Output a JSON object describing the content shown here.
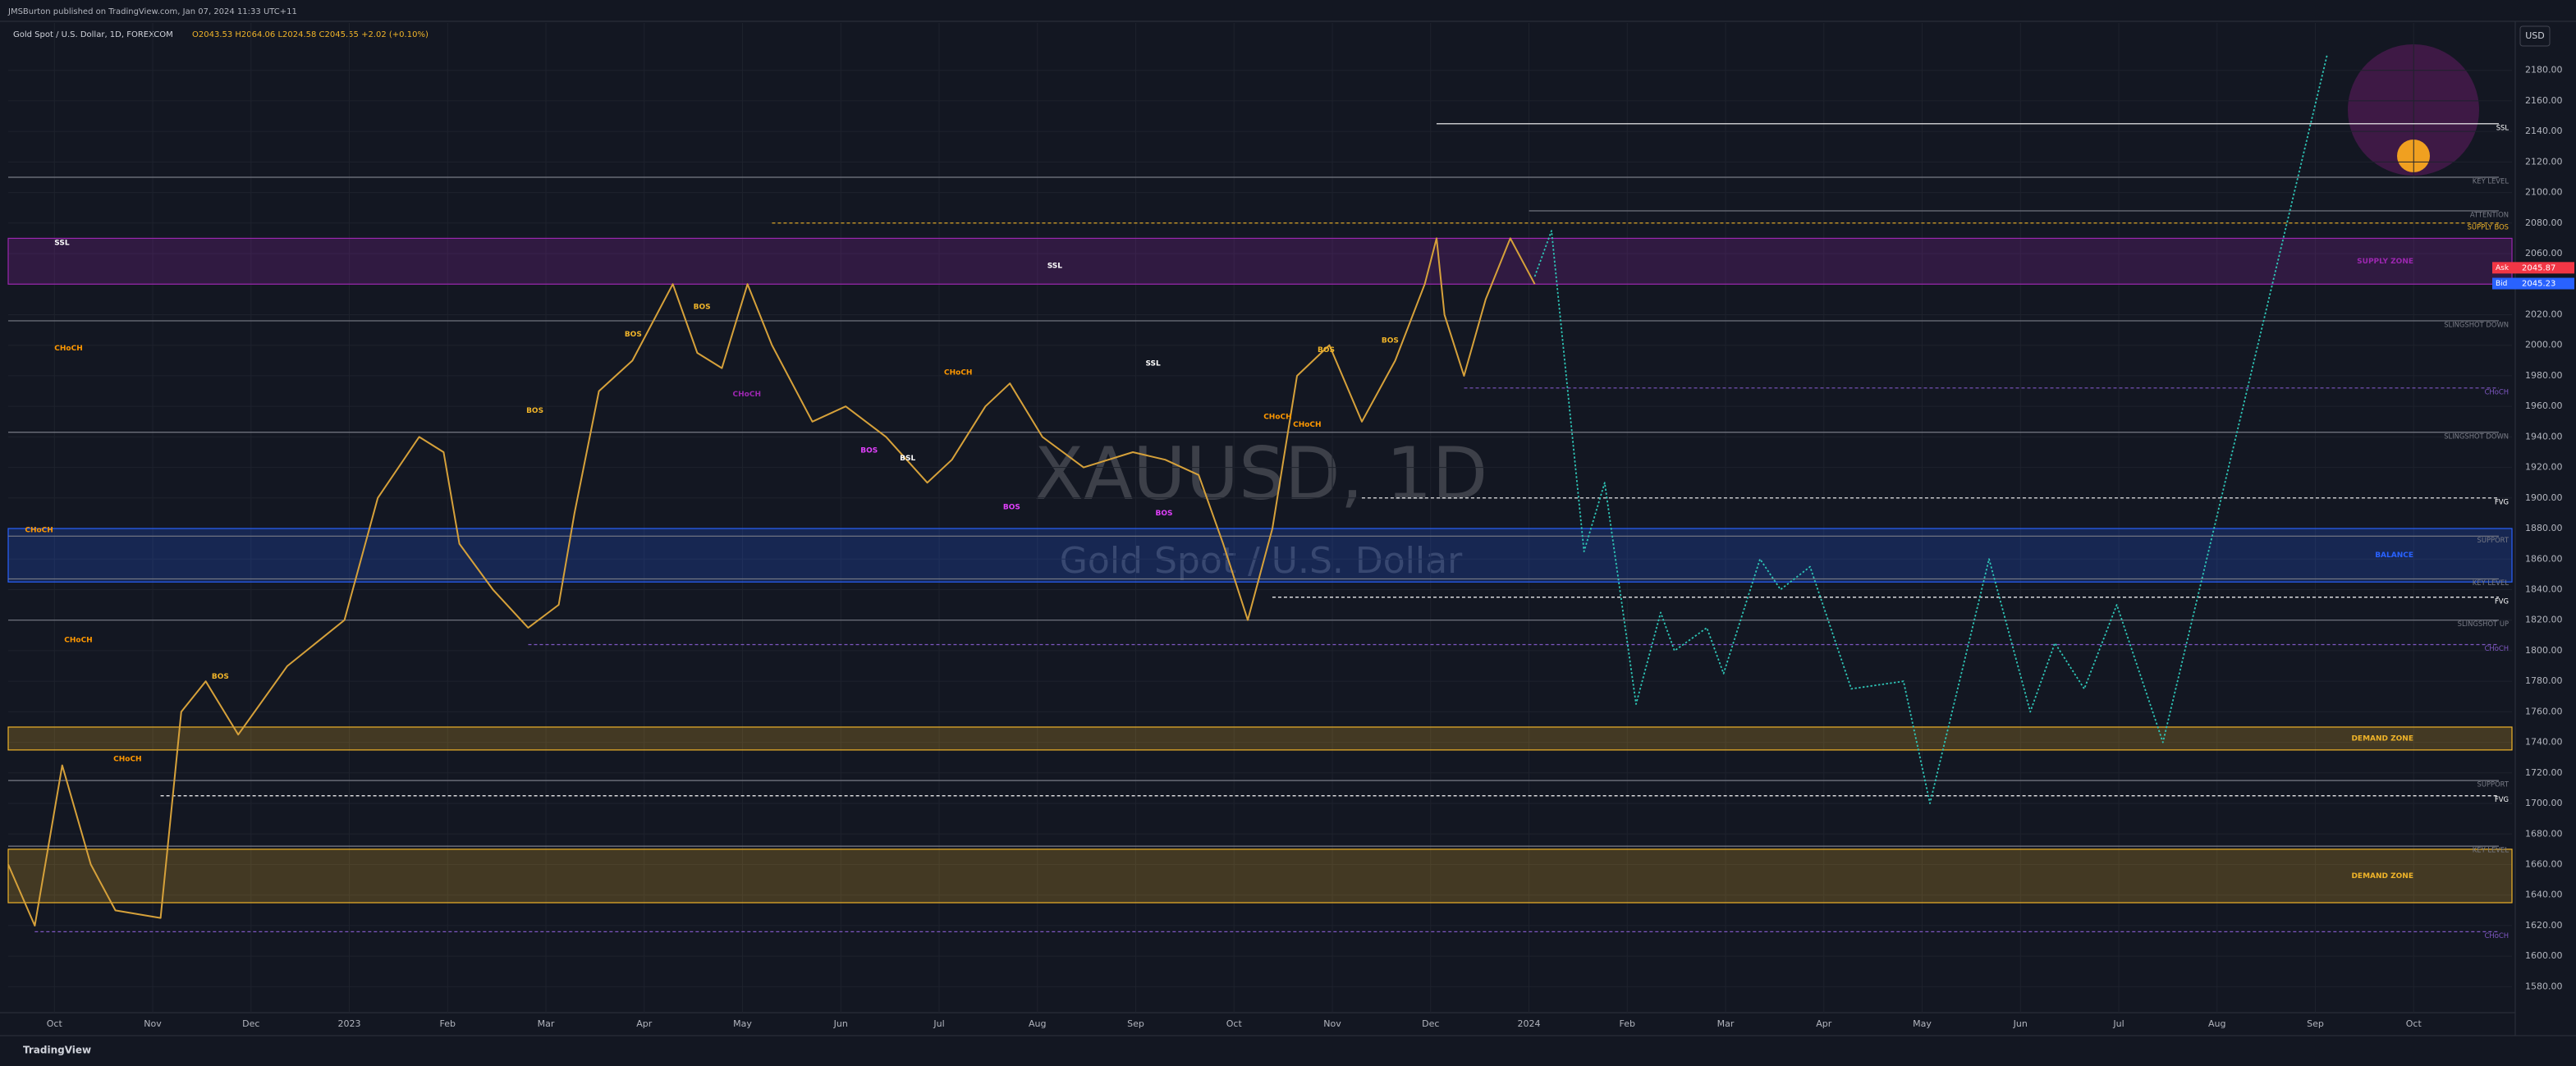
{
  "header": {
    "published": "JMSBurton published on TradingView.com, Jan 07, 2024 11:33 UTC+11",
    "symbol": "Gold Spot / U.S. Dollar, 1D, FOREXCOM",
    "ohlc": "O2043.53 H2064.06 L2024.58 C2045.55 +2.02 (+0.10%)",
    "currency": "USD",
    "footer": "TradingView"
  },
  "chart_data": {
    "type": "line",
    "watermark": "XAUUSD, 1D",
    "watermark_sub": "Gold Spot / U.S. Dollar",
    "xlim": [
      -0.47,
      25
    ],
    "xticks": [
      {
        "value": 0,
        "label": "Oct"
      },
      {
        "value": 1,
        "label": "Nov"
      },
      {
        "value": 2,
        "label": "Dec"
      },
      {
        "value": 3,
        "label": "2023"
      },
      {
        "value": 4,
        "label": "Feb"
      },
      {
        "value": 5,
        "label": "Mar"
      },
      {
        "value": 6,
        "label": "Apr"
      },
      {
        "value": 7,
        "label": "May"
      },
      {
        "value": 8,
        "label": "Jun"
      },
      {
        "value": 9,
        "label": "Jul"
      },
      {
        "value": 10,
        "label": "Aug"
      },
      {
        "value": 11,
        "label": "Sep"
      },
      {
        "value": 12,
        "label": "Oct"
      },
      {
        "value": 13,
        "label": "Nov"
      },
      {
        "value": 14,
        "label": "Dec"
      },
      {
        "value": 15,
        "label": "2024"
      },
      {
        "value": 16,
        "label": "Feb"
      },
      {
        "value": 17,
        "label": "Mar"
      },
      {
        "value": 18,
        "label": "Apr"
      },
      {
        "value": 19,
        "label": "May"
      },
      {
        "value": 20,
        "label": "Jun"
      },
      {
        "value": 21,
        "label": "Jul"
      },
      {
        "value": 22,
        "label": "Aug"
      },
      {
        "value": 23,
        "label": "Sep"
      },
      {
        "value": 24,
        "label": "Oct"
      }
    ],
    "ylim": [
      1563,
      2211
    ],
    "yticks": [
      {
        "value": 1580,
        "label": "1580.00"
      },
      {
        "value": 1600,
        "label": "1600.00"
      },
      {
        "value": 1620,
        "label": "1620.00"
      },
      {
        "value": 1640,
        "label": "1640.00"
      },
      {
        "value": 1660,
        "label": "1660.00"
      },
      {
        "value": 1680,
        "label": "1680.00"
      },
      {
        "value": 1700,
        "label": "1700.00"
      },
      {
        "value": 1720,
        "label": "1720.00"
      },
      {
        "value": 1740,
        "label": "1740.00"
      },
      {
        "value": 1760,
        "label": "1760.00"
      },
      {
        "value": 1780,
        "label": "1780.00"
      },
      {
        "value": 1800,
        "label": "1800.00"
      },
      {
        "value": 1820,
        "label": "1820.00"
      },
      {
        "value": 1840,
        "label": "1840.00"
      },
      {
        "value": 1860,
        "label": "1860.00"
      },
      {
        "value": 1880,
        "label": "1880.00"
      },
      {
        "value": 1900,
        "label": "1900.00"
      },
      {
        "value": 1920,
        "label": "1920.00"
      },
      {
        "value": 1940,
        "label": "1940.00"
      },
      {
        "value": 1960,
        "label": "1960.00"
      },
      {
        "value": 1980,
        "label": "1980.00"
      },
      {
        "value": 2000,
        "label": "2000.00"
      },
      {
        "value": 2020,
        "label": "2020.00"
      },
      {
        "value": 2040,
        "label": "2040.00"
      },
      {
        "value": 2060,
        "label": "2060.00"
      },
      {
        "value": 2080,
        "label": "2080.00"
      },
      {
        "value": 2100,
        "label": "2100.00"
      },
      {
        "value": 2120,
        "label": "2120.00"
      },
      {
        "value": 2140,
        "label": "2140.00"
      },
      {
        "value": 2160,
        "label": "2160.00"
      },
      {
        "value": 2180,
        "label": "2180.00"
      }
    ],
    "series": [
      {
        "color": "#d6a13a",
        "dash": false,
        "x": [
          -0.47,
          -0.2,
          0.08,
          0.37,
          0.62,
          1.08,
          1.29,
          1.54,
          1.87,
          2.37,
          2.95,
          3.29,
          3.71,
          3.96,
          4.12,
          4.46,
          4.82,
          5.13,
          5.29,
          5.54,
          5.88,
          6.29,
          6.54,
          6.79,
          7.05,
          7.3,
          7.71,
          8.05,
          8.46,
          8.88,
          9.13,
          9.47,
          9.72,
          10.05,
          10.47,
          10.97,
          11.3,
          11.64,
          11.89,
          12.14,
          12.39,
          12.64,
          12.97,
          13.3,
          13.64,
          13.94,
          14.06,
          14.14,
          14.34,
          14.56,
          14.81,
          15.06
        ],
        "values": [
          1660,
          1620,
          1725,
          1660,
          1630,
          1625,
          1760,
          1780,
          1745,
          1790,
          1820,
          1900,
          1940,
          1930,
          1870,
          1840,
          1815,
          1830,
          1890,
          1970,
          1990,
          2040,
          1995,
          1985,
          2040,
          2000,
          1950,
          1960,
          1940,
          1910,
          1925,
          1960,
          1975,
          1940,
          1920,
          1930,
          1925,
          1915,
          1870,
          1820,
          1880,
          1980,
          2000,
          1950,
          1990,
          2040,
          2070,
          2020,
          1980,
          2030,
          2070,
          2040
        ]
      },
      {
        "color": "#2ec4b6",
        "dash": true,
        "x": [
          15.06,
          15.23,
          15.56,
          15.77,
          16.09,
          16.34,
          16.48,
          16.81,
          16.98,
          17.35,
          17.56,
          17.86,
          18.28,
          18.81,
          19.08,
          19.68,
          20.1,
          20.35,
          20.65,
          20.98,
          21.45,
          23.12
        ],
        "values": [
          2045,
          2075,
          1865,
          1910,
          1765,
          1825,
          1800,
          1815,
          1785,
          1860,
          1840,
          1855,
          1775,
          1780,
          1700,
          1860,
          1760,
          1805,
          1775,
          1830,
          1740,
          2190
        ]
      }
    ],
    "zones": [
      {
        "label": "SUPPLY ZONE",
        "low": 2040,
        "high": 2070,
        "color": "#9c27b0"
      },
      {
        "label": "BALANCE",
        "low": 1845,
        "high": 1880,
        "color": "#2962ff"
      },
      {
        "label": "DEMAND ZONE",
        "low": 1735,
        "high": 1750,
        "color": "#f0b429"
      },
      {
        "label": "DEMAND ZONE",
        "low": 1635,
        "high": 1670,
        "color": "#f0b429"
      }
    ],
    "levels": [
      {
        "label": "SSL",
        "value": 2145,
        "from": 14.06,
        "color": "#ffffff",
        "dash": false
      },
      {
        "label": "KEY LEVEL",
        "value": 2110,
        "from": -0.47,
        "color": "#787b86",
        "dash": false
      },
      {
        "label": "ATTENTION",
        "value": 2088,
        "from": 15.0,
        "color": "#787b86",
        "dash": false
      },
      {
        "label": "SUPPLY BOS",
        "value": 2080,
        "from": 7.3,
        "color": "#f0b429",
        "dash": true
      },
      {
        "label": "SLINGSHOT DOWN",
        "value": 2016,
        "from": -0.47,
        "color": "#787b86",
        "dash": false
      },
      {
        "label": "CHoCH",
        "value": 1972,
        "from": 14.34,
        "color": "#7e57c2",
        "dash": true
      },
      {
        "label": "SLINGSHOT DOWN",
        "value": 1943,
        "from": -0.47,
        "color": "#787b86",
        "dash": false
      },
      {
        "label": "FVG",
        "value": 1900,
        "from": 13.3,
        "color": "#ffffff",
        "dash": true
      },
      {
        "label": "SUPPORT",
        "value": 1875,
        "from": -0.47,
        "color": "#787b86",
        "dash": false
      },
      {
        "label": "KEY LEVEL",
        "value": 1847,
        "from": -0.47,
        "color": "#787b86",
        "dash": false
      },
      {
        "label": "FVG",
        "value": 1835,
        "from": 12.39,
        "color": "#ffffff",
        "dash": true
      },
      {
        "label": "SLINGSHOT UP",
        "value": 1820,
        "from": -0.47,
        "color": "#787b86",
        "dash": false
      },
      {
        "label": "CHoCH",
        "value": 1804,
        "from": 4.82,
        "color": "#7e57c2",
        "dash": true
      },
      {
        "label": "SUPPORT",
        "value": 1715,
        "from": -0.47,
        "color": "#787b86",
        "dash": false
      },
      {
        "label": "FVG",
        "value": 1705,
        "from": 1.08,
        "color": "#ffffff",
        "dash": true
      },
      {
        "label": "KEY LEVEL",
        "value": 1672,
        "from": -0.47,
        "color": "#787b86",
        "dash": false
      },
      {
        "label": "CHoCH",
        "value": 1616,
        "from": -0.2,
        "color": "#7e57c2",
        "dash": true
      }
    ],
    "annotations": [
      {
        "text": "SSL",
        "x": 0,
        "y": 2067,
        "color": "#ffffff"
      },
      {
        "text": "CHoCH",
        "x": 0,
        "y": 1998,
        "color": "#ff9800"
      },
      {
        "text": "CHoCH",
        "x": -0.3,
        "y": 1879,
        "color": "#ff9800"
      },
      {
        "text": "CHoCH",
        "x": 0.1,
        "y": 1807,
        "color": "#ff9800"
      },
      {
        "text": "CHoCH",
        "x": 0.6,
        "y": 1729,
        "color": "#ff9800"
      },
      {
        "text": "BOS",
        "x": 1.6,
        "y": 1783,
        "color": "#f0b429"
      },
      {
        "text": "BOS",
        "x": 4.8,
        "y": 1957,
        "color": "#f0b429"
      },
      {
        "text": "BOS",
        "x": 5.8,
        "y": 2007,
        "color": "#f0b429"
      },
      {
        "text": "BOS",
        "x": 6.5,
        "y": 2025,
        "color": "#f0b429"
      },
      {
        "text": "SSL",
        "x": 10.1,
        "y": 2052,
        "color": "#ffffff"
      },
      {
        "text": "CHoCH",
        "x": 6.9,
        "y": 1968,
        "color": "#9c27b0"
      },
      {
        "text": "CHoCH",
        "x": 9.05,
        "y": 1982,
        "color": "#ff9800"
      },
      {
        "text": "BOS",
        "x": 8.2,
        "y": 1931,
        "color": "#e040fb"
      },
      {
        "text": "BSL",
        "x": 8.6,
        "y": 1926,
        "color": "#ffffff"
      },
      {
        "text": "SSL",
        "x": 11.1,
        "y": 1988,
        "color": "#ffffff"
      },
      {
        "text": "BOS",
        "x": 9.65,
        "y": 1894,
        "color": "#e040fb"
      },
      {
        "text": "BOS",
        "x": 11.2,
        "y": 1890,
        "color": "#e040fb"
      },
      {
        "text": "CHoCH",
        "x": 12.3,
        "y": 1953,
        "color": "#ff9800"
      },
      {
        "text": "CHoCH",
        "x": 12.6,
        "y": 1948,
        "color": "#ff9800"
      },
      {
        "text": "BOS",
        "x": 12.85,
        "y": 1997,
        "color": "#f0b429"
      },
      {
        "text": "BOS",
        "x": 13.5,
        "y": 2003,
        "color": "#f0b429"
      }
    ],
    "quotes": [
      {
        "label": "Ask",
        "value": 2045.87,
        "color": "#f23645"
      },
      {
        "label": "Bid",
        "value": 2045.23,
        "color": "#2962ff"
      }
    ]
  }
}
